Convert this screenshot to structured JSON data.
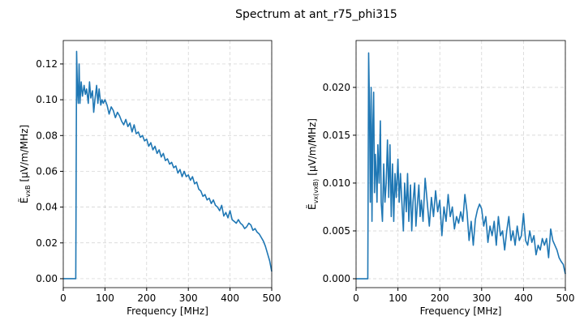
{
  "title": "Spectrum at ant_r75_phi315",
  "chart_data": [
    {
      "type": "line",
      "color": "#1f77b4",
      "grid": true,
      "xlabel": "Frequency [MHz]",
      "ylabel": {
        "symbol": "Ẽ",
        "subscript": "vxB",
        "unit": "[µV/m/MHz]"
      },
      "xlim": [
        0,
        500
      ],
      "xticks": [
        0,
        100,
        200,
        300,
        400,
        500
      ],
      "ylim": [
        -0.005,
        0.1331
      ],
      "yticks": [
        {
          "value": 0,
          "label": "0.00"
        },
        {
          "value": 0.02,
          "label": "0.02"
        },
        {
          "value": 0.04,
          "label": "0.04"
        },
        {
          "value": 0.06,
          "label": "0.06"
        },
        {
          "value": 0.08,
          "label": "0.08"
        },
        {
          "value": 0.1,
          "label": "0.10"
        },
        {
          "value": 0.12,
          "label": "0.12"
        }
      ],
      "x": [
        0,
        30,
        32,
        34,
        36,
        38,
        40,
        43,
        46,
        50,
        53,
        56,
        60,
        63,
        66,
        70,
        73,
        76,
        80,
        83,
        86,
        90,
        93,
        96,
        100,
        105,
        110,
        115,
        120,
        125,
        130,
        135,
        140,
        145,
        150,
        155,
        160,
        165,
        170,
        175,
        180,
        185,
        190,
        195,
        200,
        205,
        210,
        215,
        220,
        225,
        230,
        235,
        240,
        245,
        250,
        255,
        260,
        265,
        270,
        275,
        280,
        285,
        290,
        295,
        300,
        305,
        310,
        315,
        320,
        325,
        330,
        335,
        340,
        345,
        350,
        355,
        360,
        365,
        370,
        375,
        380,
        385,
        390,
        395,
        400,
        405,
        410,
        415,
        420,
        425,
        430,
        435,
        440,
        445,
        450,
        455,
        460,
        465,
        470,
        475,
        480,
        485,
        490,
        495,
        500
      ],
      "values": [
        0,
        0,
        0.127,
        0.105,
        0.098,
        0.12,
        0.098,
        0.11,
        0.102,
        0.108,
        0.103,
        0.106,
        0.098,
        0.11,
        0.101,
        0.105,
        0.093,
        0.1,
        0.108,
        0.098,
        0.106,
        0.097,
        0.1,
        0.098,
        0.1,
        0.097,
        0.092,
        0.096,
        0.094,
        0.09,
        0.093,
        0.091,
        0.088,
        0.086,
        0.089,
        0.085,
        0.087,
        0.082,
        0.086,
        0.081,
        0.082,
        0.079,
        0.08,
        0.077,
        0.078,
        0.074,
        0.076,
        0.072,
        0.074,
        0.07,
        0.072,
        0.068,
        0.07,
        0.066,
        0.067,
        0.064,
        0.065,
        0.062,
        0.063,
        0.059,
        0.061,
        0.057,
        0.06,
        0.057,
        0.058,
        0.055,
        0.057,
        0.053,
        0.054,
        0.05,
        0.049,
        0.046,
        0.047,
        0.044,
        0.045,
        0.042,
        0.044,
        0.041,
        0.04,
        0.038,
        0.041,
        0.035,
        0.037,
        0.034,
        0.038,
        0.033,
        0.032,
        0.031,
        0.033,
        0.031,
        0.03,
        0.028,
        0.029,
        0.031,
        0.03,
        0.027,
        0.028,
        0.026,
        0.025,
        0.023,
        0.021,
        0.018,
        0.014,
        0.01,
        0.004
      ]
    },
    {
      "type": "line",
      "color": "#1f77b4",
      "grid": true,
      "xlabel": "Frequency [MHz]",
      "ylabel": {
        "symbol": "Ẽ",
        "subscript": "vx(vxB)",
        "unit": "[µV/m/MHz]"
      },
      "xlim": [
        0,
        500
      ],
      "xticks": [
        0,
        100,
        200,
        300,
        400,
        500
      ],
      "ylim": [
        -0.00093,
        0.0249
      ],
      "yticks": [
        {
          "value": 0,
          "label": "0.000"
        },
        {
          "value": 0.005,
          "label": "0.005"
        },
        {
          "value": 0.01,
          "label": "0.010"
        },
        {
          "value": 0.015,
          "label": "0.015"
        },
        {
          "value": 0.02,
          "label": "0.020"
        }
      ],
      "x": [
        0,
        28,
        30,
        32,
        34,
        36,
        38,
        40,
        42,
        44,
        46,
        48,
        50,
        52,
        55,
        58,
        60,
        63,
        66,
        69,
        72,
        75,
        78,
        81,
        84,
        87,
        90,
        93,
        96,
        100,
        103,
        106,
        110,
        113,
        116,
        120,
        123,
        126,
        130,
        133,
        136,
        140,
        143,
        146,
        150,
        153,
        156,
        160,
        165,
        170,
        175,
        180,
        185,
        190,
        195,
        200,
        205,
        210,
        215,
        220,
        225,
        230,
        235,
        240,
        245,
        250,
        255,
        260,
        265,
        270,
        275,
        280,
        285,
        290,
        295,
        300,
        305,
        310,
        315,
        320,
        325,
        330,
        335,
        340,
        345,
        350,
        355,
        360,
        365,
        370,
        375,
        380,
        385,
        390,
        395,
        400,
        405,
        410,
        415,
        420,
        425,
        430,
        435,
        440,
        445,
        450,
        455,
        460,
        465,
        470,
        475,
        480,
        485,
        490,
        495,
        500
      ],
      "values": [
        0,
        0,
        0.0236,
        0.018,
        0.008,
        0.02,
        0.006,
        0.016,
        0.0195,
        0.009,
        0.013,
        0.011,
        0.008,
        0.014,
        0.01,
        0.0165,
        0.008,
        0.006,
        0.012,
        0.008,
        0.01,
        0.0145,
        0.0085,
        0.014,
        0.0065,
        0.012,
        0.006,
        0.011,
        0.0085,
        0.0125,
        0.008,
        0.011,
        0.0075,
        0.005,
        0.01,
        0.007,
        0.011,
        0.006,
        0.0098,
        0.005,
        0.008,
        0.01,
        0.0055,
        0.0075,
        0.0098,
        0.0065,
        0.0082,
        0.006,
        0.0105,
        0.008,
        0.0055,
        0.0085,
        0.0065,
        0.0092,
        0.007,
        0.0082,
        0.0045,
        0.0075,
        0.006,
        0.0088,
        0.0065,
        0.0075,
        0.0052,
        0.0065,
        0.0058,
        0.007,
        0.006,
        0.0088,
        0.007,
        0.004,
        0.006,
        0.0035,
        0.0062,
        0.0072,
        0.0078,
        0.0073,
        0.0055,
        0.0065,
        0.0038,
        0.0055,
        0.0045,
        0.006,
        0.0035,
        0.0065,
        0.0045,
        0.005,
        0.003,
        0.005,
        0.0065,
        0.004,
        0.005,
        0.0035,
        0.0055,
        0.004,
        0.0045,
        0.0068,
        0.004,
        0.0035,
        0.005,
        0.0038,
        0.0045,
        0.0025,
        0.0035,
        0.003,
        0.0042,
        0.0035,
        0.0042,
        0.0022,
        0.0052,
        0.004,
        0.0035,
        0.003,
        0.0022,
        0.0018,
        0.0015,
        0.0005
      ]
    }
  ]
}
